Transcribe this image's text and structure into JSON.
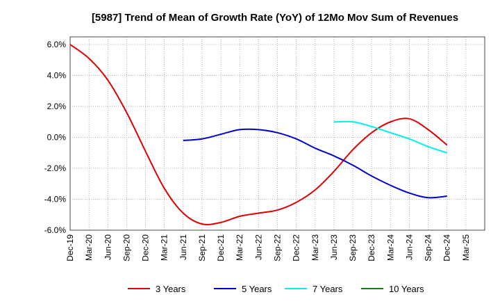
{
  "chart_data": {
    "type": "line",
    "title": "[5987]  Trend of Mean of Growth Rate (YoY) of 12Mo Mov Sum of Revenues",
    "xlabel": "",
    "ylabel": "",
    "ylim": [
      -6.0,
      6.0
    ],
    "y_ticks": [
      6.0,
      4.0,
      2.0,
      0.0,
      -2.0,
      -4.0,
      -6.0
    ],
    "y_tick_labels": [
      "6.0%",
      "4.0%",
      "2.0%",
      "0.0%",
      "-2.0%",
      "-4.0%",
      "-6.0%"
    ],
    "x_tick_labels": [
      "Dec-19",
      "Mar-20",
      "Jun-20",
      "Sep-20",
      "Dec-20",
      "Mar-21",
      "Jun-21",
      "Sep-21",
      "Dec-21",
      "Mar-22",
      "Jun-22",
      "Sep-22",
      "Dec-22",
      "Mar-23",
      "Jun-23",
      "Sep-23",
      "Dec-23",
      "Mar-24",
      "Jun-24",
      "Sep-24",
      "Dec-24",
      "Mar-25"
    ],
    "grid": true,
    "legend_position": "bottom",
    "series": [
      {
        "name": "3 Years",
        "color": "#dd0000",
        "points": [
          [
            0,
            6.0
          ],
          [
            1,
            5.1
          ],
          [
            2,
            3.7
          ],
          [
            3,
            1.6
          ],
          [
            4,
            -0.9
          ],
          [
            5,
            -3.3
          ],
          [
            6,
            -4.9
          ],
          [
            7,
            -5.6
          ],
          [
            8,
            -5.5
          ],
          [
            9,
            -5.1
          ],
          [
            10,
            -4.9
          ],
          [
            11,
            -4.7
          ],
          [
            12,
            -4.2
          ],
          [
            13,
            -3.4
          ],
          [
            14,
            -2.2
          ],
          [
            15,
            -0.8
          ],
          [
            16,
            0.3
          ],
          [
            17,
            1.0
          ],
          [
            18,
            1.2
          ],
          [
            19,
            0.5
          ],
          [
            20,
            -0.5
          ]
        ]
      },
      {
        "name": "5 Years",
        "color": "#0000cc",
        "points": [
          [
            6,
            -0.2
          ],
          [
            7,
            -0.1
          ],
          [
            8,
            0.2
          ],
          [
            9,
            0.5
          ],
          [
            10,
            0.5
          ],
          [
            11,
            0.3
          ],
          [
            12,
            -0.1
          ],
          [
            13,
            -0.7
          ],
          [
            14,
            -1.2
          ],
          [
            15,
            -1.8
          ],
          [
            16,
            -2.5
          ],
          [
            17,
            -3.1
          ],
          [
            18,
            -3.6
          ],
          [
            19,
            -3.9
          ],
          [
            20,
            -3.8
          ]
        ]
      },
      {
        "name": "7 Years",
        "color": "#00eeee",
        "points": [
          [
            14,
            1.0
          ],
          [
            15,
            1.0
          ],
          [
            16,
            0.7
          ],
          [
            17,
            0.3
          ],
          [
            18,
            -0.1
          ],
          [
            19,
            -0.6
          ],
          [
            20,
            -1.0
          ]
        ]
      },
      {
        "name": "10 Years",
        "color": "#008800",
        "points": []
      }
    ]
  }
}
